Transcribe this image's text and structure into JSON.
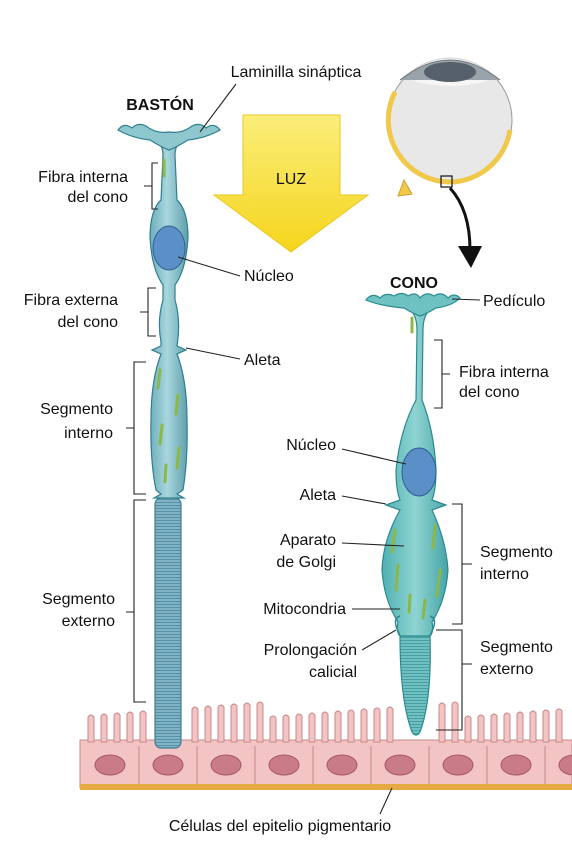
{
  "titles": {
    "rod": "BASTÓN",
    "cone": "CONO"
  },
  "light_label": "LUZ",
  "rod_labels": {
    "synaptic_lamella": "Laminilla sináptica",
    "inner_fiber_line1": "Fibra interna",
    "inner_fiber_line2": "del cono",
    "nucleus": "Núcleo",
    "outer_fiber_line1": "Fibra externa",
    "outer_fiber_line2": "del cono",
    "fin": "Aleta",
    "inner_segment_line1": "Segmento",
    "inner_segment_line2": "interno",
    "outer_segment_line1": "Segmento",
    "outer_segment_line2": "externo"
  },
  "cone_labels": {
    "pedicle": "Pedículo",
    "inner_fiber_line1": "Fibra interna",
    "inner_fiber_line2": "del cono",
    "nucleus": "Núcleo",
    "fin": "Aleta",
    "golgi_line1": "Aparato",
    "golgi_line2": "de Golgi",
    "mitochondria": "Mitocondria",
    "calyceal_line1": "Prolongación",
    "calyceal_line2": "calicial",
    "inner_segment_line1": "Segmento",
    "inner_segment_line2": "interno",
    "outer_segment_line1": "Segmento",
    "outer_segment_line2": "externo"
  },
  "epithelium_label": "Células del epitelio pigmentario",
  "colors": {
    "cell_fill": "#8fc7cf",
    "cell_stroke": "#2f7f8f",
    "cone_fill": "#6fc2c2",
    "nucleus": "#5b8fc7",
    "mitochondria": "#8ab84a",
    "arrow_yellow": "#f7e03a",
    "epithelium": "#f2c4c4",
    "epithelium_stroke": "#c98a8a",
    "epithelium_nucleus": "#c97b86",
    "membrane": "#e6a840",
    "sclera": "#e8e8e8",
    "retina": "#f0c84a"
  }
}
